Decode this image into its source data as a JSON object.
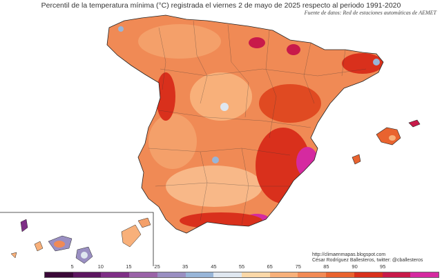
{
  "title": "Percentil de la temperatura mínima (°C) registrada el viernes 2 de mayo de 2025 respecto al periodo 1991-2020",
  "source": "Fuente de datos: Red de estaciones automáticas de AEMET",
  "credits": {
    "url": "http://climaenmapas.blogspot.com",
    "author": "César Rodríguez Ballesteros, twitter: @cballesteros"
  },
  "legend": {
    "ticks": [
      "5",
      "10",
      "15",
      "25",
      "35",
      "45",
      "55",
      "65",
      "75",
      "85",
      "90",
      "95"
    ],
    "colors": [
      "#3a0838",
      "#5c1660",
      "#7e2f86",
      "#9a63a8",
      "#9a8fc2",
      "#98b5d8",
      "#dfe7f0",
      "#fbd8a8",
      "#f8b07a",
      "#f28a55",
      "#e9632f",
      "#d9301c",
      "#c81a4a",
      "#d52aa0"
    ]
  },
  "chart_data": {
    "type": "heatmap",
    "title": "Percentil de la temperatura mínima (°C) registrada el viernes 2 de mayo de 2025 respecto al periodo 1991-2020",
    "variable": "Percentil de la temperatura mínima",
    "date": "viernes 2 de mayo de 2025",
    "reference_period": "1991-2020",
    "color_scale_breaks": [
      5,
      10,
      15,
      25,
      35,
      45,
      55,
      65,
      75,
      85,
      90,
      95
    ]
  }
}
